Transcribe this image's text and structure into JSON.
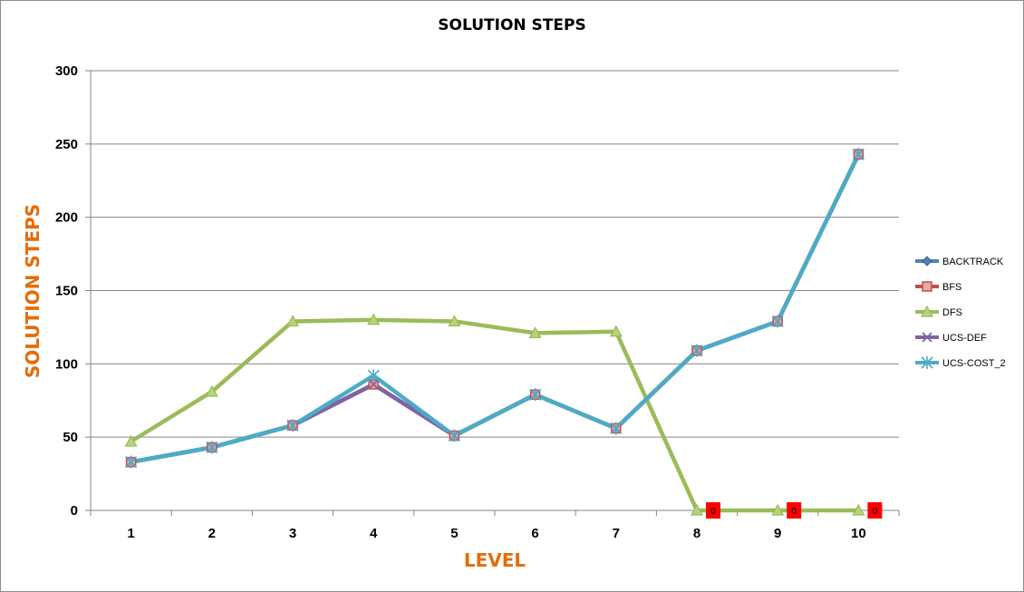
{
  "chart_data": {
    "type": "line",
    "title": "SOLUTION STEPS",
    "xlabel": "LEVEL",
    "ylabel": "SOLUTION STEPS",
    "categories": [
      "1",
      "2",
      "3",
      "4",
      "5",
      "6",
      "7",
      "8",
      "9",
      "10"
    ],
    "ylim": [
      0,
      300
    ],
    "yticks": [
      0,
      50,
      100,
      150,
      200,
      250,
      300
    ],
    "grid": true,
    "legend_position": "right",
    "series": [
      {
        "name": "BACKTRACK",
        "color": "#4F81BD",
        "marker": "diamond",
        "values": [
          33,
          43,
          58,
          86,
          51,
          79,
          56,
          109,
          129,
          243
        ]
      },
      {
        "name": "BFS",
        "color": "#C0504D",
        "marker": "square",
        "values": [
          33,
          43,
          58,
          86,
          51,
          79,
          56,
          109,
          129,
          243
        ]
      },
      {
        "name": "DFS",
        "color": "#9BBB59",
        "marker": "triangle",
        "values": [
          47,
          81,
          129,
          130,
          129,
          121,
          122,
          0,
          0,
          0
        ]
      },
      {
        "name": "UCS-DEF",
        "color": "#8064A2",
        "marker": "x",
        "values": [
          33,
          43,
          58,
          86,
          51,
          79,
          56,
          109,
          129,
          243
        ]
      },
      {
        "name": "UCS-COST_2",
        "color": "#4BACC6",
        "marker": "star",
        "values": [
          33,
          43,
          58,
          92,
          51,
          79,
          56,
          109,
          129,
          243
        ]
      }
    ],
    "data_labels": [
      {
        "series": "DFS",
        "category": "8",
        "text": "0",
        "color": "#FF0000"
      },
      {
        "series": "DFS",
        "category": "9",
        "text": "0",
        "color": "#FF0000"
      },
      {
        "series": "DFS",
        "category": "10",
        "text": "0",
        "color": "#FF0000"
      }
    ]
  }
}
